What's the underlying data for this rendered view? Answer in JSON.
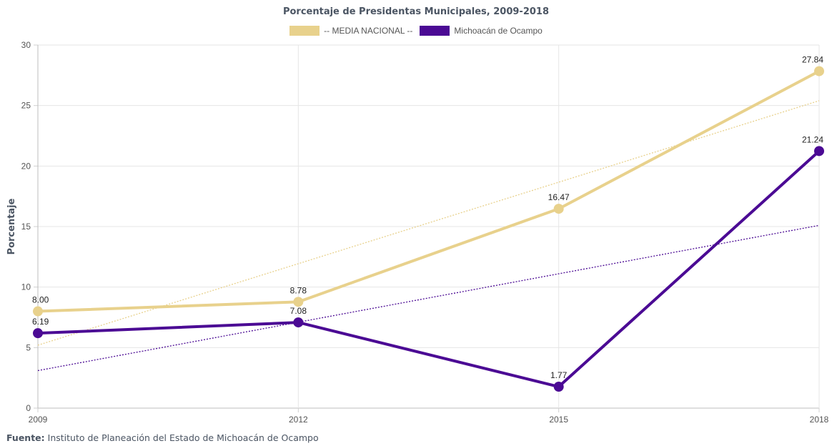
{
  "chart_data": {
    "type": "line",
    "title": "Porcentaje de Presidentas Municipales, 2009-2018",
    "ylabel": "Porcentaje",
    "xlabel": "",
    "ylim": [
      0,
      30
    ],
    "yticks": [
      0,
      5,
      10,
      15,
      20,
      25,
      30
    ],
    "categories": [
      "2009",
      "2012",
      "2015",
      "2018"
    ],
    "grid": true,
    "legend_position": "top-center",
    "trendlines": true,
    "series": [
      {
        "name": "-- MEDIA NACIONAL --",
        "color": "#e8d18c",
        "values": [
          8.0,
          8.78,
          16.47,
          27.84
        ],
        "labels": [
          "8.00",
          "8.78",
          "16.47",
          "27.84"
        ],
        "trend": [
          5.2,
          25.4
        ]
      },
      {
        "name": "Michoacán de Ocampo",
        "color": "#4b0a94",
        "values": [
          6.19,
          7.08,
          1.77,
          21.24
        ],
        "labels": [
          "6.19",
          "7.08",
          "1.77",
          "21.24"
        ],
        "trend": [
          3.1,
          15.1
        ]
      }
    ]
  },
  "source": {
    "label": "Fuente:",
    "text": " Instituto de Planeación del Estado de Michoacán de Ocampo"
  }
}
